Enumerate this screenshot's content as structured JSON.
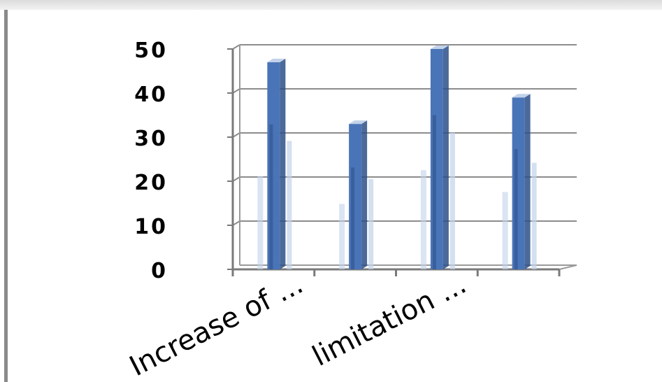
{
  "chart_data": {
    "type": "bar",
    "style": "3d-column",
    "categories": [
      "Increase of ...",
      "",
      "limitation ...",
      ""
    ],
    "values": [
      47,
      33,
      50,
      39
    ],
    "title": "",
    "xlabel": "",
    "ylabel": "",
    "ylim": [
      0,
      50
    ],
    "yticks": [
      0,
      10,
      20,
      30,
      40,
      50
    ],
    "grid": true,
    "legend": "none",
    "bar_color": "#4a74b8",
    "bar_color_dark": "#2b4f87",
    "bar_color_light": "#c2d2ea"
  }
}
